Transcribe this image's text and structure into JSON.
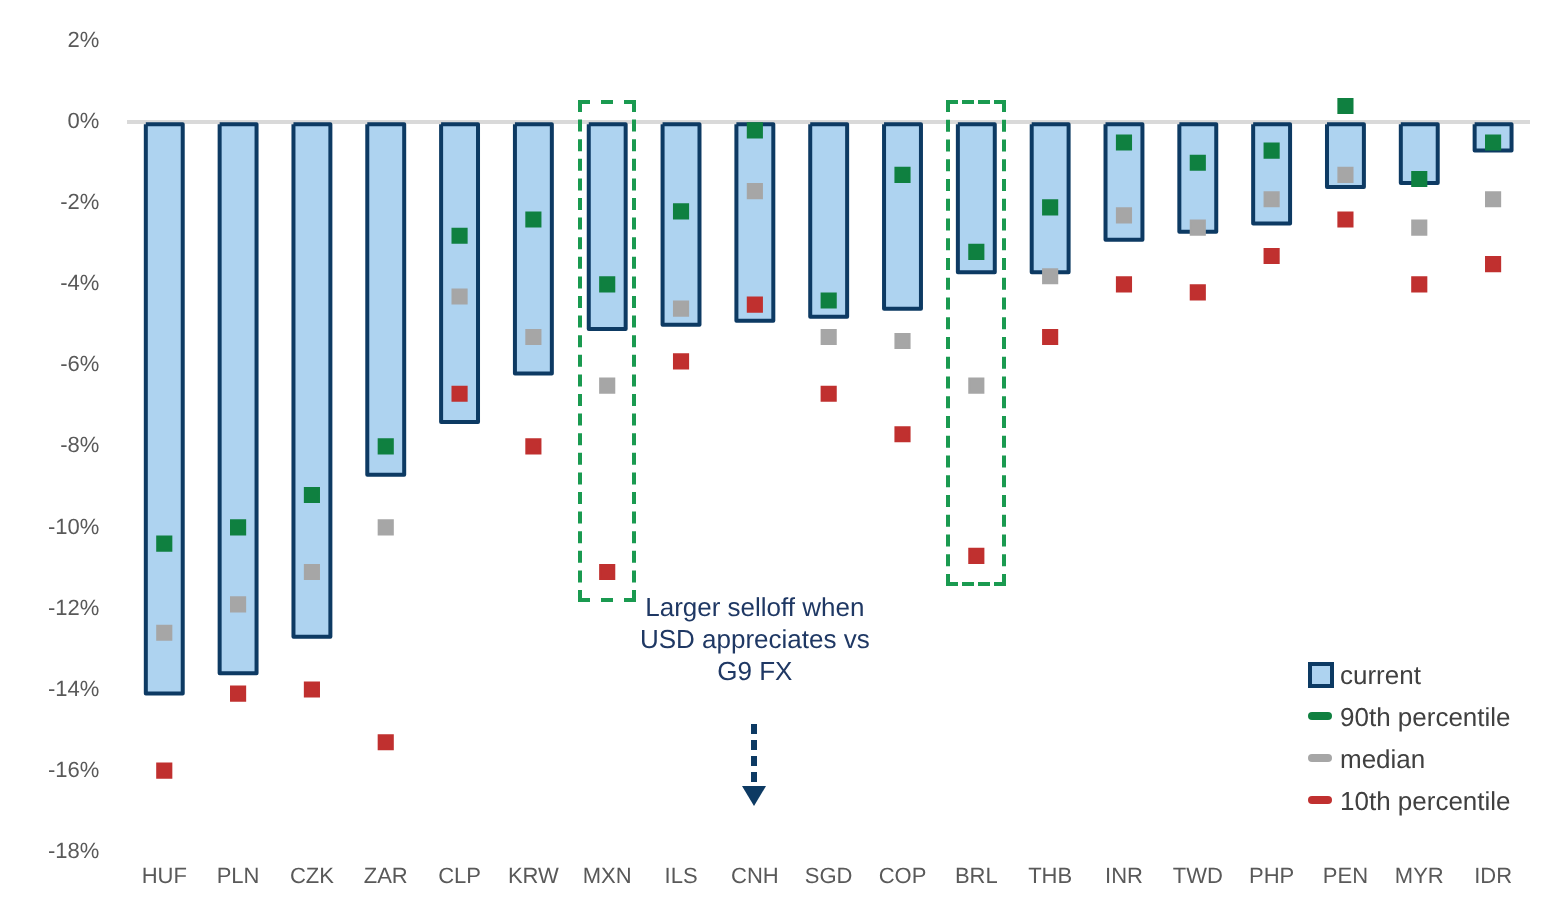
{
  "chart_data": {
    "type": "bar",
    "categories": [
      "HUF",
      "PLN",
      "CZK",
      "ZAR",
      "CLP",
      "KRW",
      "MXN",
      "ILS",
      "CNH",
      "SGD",
      "COP",
      "BRL",
      "THB",
      "INR",
      "TWD",
      "PHP",
      "PEN",
      "MYR",
      "IDR"
    ],
    "series": [
      {
        "name": "current",
        "color": "#aed3f0",
        "values": [
          -14.1,
          -13.6,
          -12.7,
          -8.7,
          -7.4,
          -6.2,
          -5.1,
          -5.0,
          -4.9,
          -4.8,
          -4.6,
          -3.7,
          -3.7,
          -2.9,
          -2.7,
          -2.5,
          -1.6,
          -1.5,
          -0.7
        ]
      },
      {
        "name": "90th percentile",
        "type": "scatter",
        "color": "#0f8040",
        "x": [
          "HUF",
          "PLN",
          "CZK",
          "ZAR",
          "CLP",
          "KRW",
          "MXN",
          "ILS",
          "CNH",
          "SGD",
          "COP",
          "BRL",
          "THB",
          "INR",
          "TWD",
          "PHP",
          "PEN",
          "MYR",
          "IDR"
        ],
        "values": [
          -10.4,
          -10.0,
          -9.2,
          -8.0,
          -2.8,
          -2.4,
          -4.0,
          -2.2,
          -0.2,
          -4.4,
          -1.3,
          -3.2,
          -2.1,
          -0.5,
          -1.0,
          -0.7,
          0.4,
          -1.4,
          -0.5
        ]
      },
      {
        "name": "median",
        "type": "scatter",
        "color": "#a6a6a6",
        "x": [
          "HUF",
          "PLN",
          "CZK",
          "ZAR",
          "CLP",
          "KRW",
          "MXN",
          "ILS",
          "CNH",
          "SGD",
          "COP",
          "BRL",
          "THB",
          "INR",
          "TWD",
          "PHP",
          "PEN",
          "MYR",
          "IDR"
        ],
        "values": [
          -12.6,
          -11.9,
          -11.1,
          -10.0,
          -4.3,
          -5.3,
          -6.5,
          -4.6,
          -1.7,
          -5.3,
          -5.4,
          -6.5,
          -3.8,
          -2.3,
          -2.6,
          -1.9,
          -1.3,
          -2.6,
          -1.9
        ]
      },
      {
        "name": "10th percentile",
        "type": "scatter",
        "color": "#c0302f",
        "x": [
          "HUF",
          "PLN",
          "CZK",
          "ZAR",
          "CLP",
          "KRW",
          "MXN",
          "ILS",
          "CNH",
          "SGD",
          "COP",
          "BRL",
          "THB",
          "INR",
          "TWD",
          "PHP",
          "PEN",
          "MYR",
          "IDR"
        ],
        "values": [
          -16.0,
          -14.1,
          -14.0,
          -15.3,
          -6.7,
          -8.0,
          -11.1,
          -5.9,
          -4.5,
          -6.7,
          -7.7,
          -10.7,
          -5.3,
          -4.0,
          -4.2,
          -3.3,
          -2.4,
          -4.0,
          -3.5
        ]
      }
    ],
    "ylim": [
      -18,
      2
    ],
    "yticks": [
      {
        "value": -18,
        "label": "-18%"
      },
      {
        "value": -16,
        "label": "-16%"
      },
      {
        "value": -14,
        "label": "-14%"
      },
      {
        "value": -12,
        "label": "-12%"
      },
      {
        "value": -10,
        "label": "-10%"
      },
      {
        "value": -8,
        "label": "-8%"
      },
      {
        "value": -6,
        "label": "-6%"
      },
      {
        "value": -4,
        "label": "-4%"
      },
      {
        "value": -2,
        "label": "-2%"
      },
      {
        "value": 0,
        "label": "0%"
      },
      {
        "value": 2,
        "label": "2%"
      }
    ],
    "annotations": [
      "Larger selloff when USD appreciates vs G9 FX"
    ],
    "marker": "square",
    "legend": "bottom right"
  }
}
